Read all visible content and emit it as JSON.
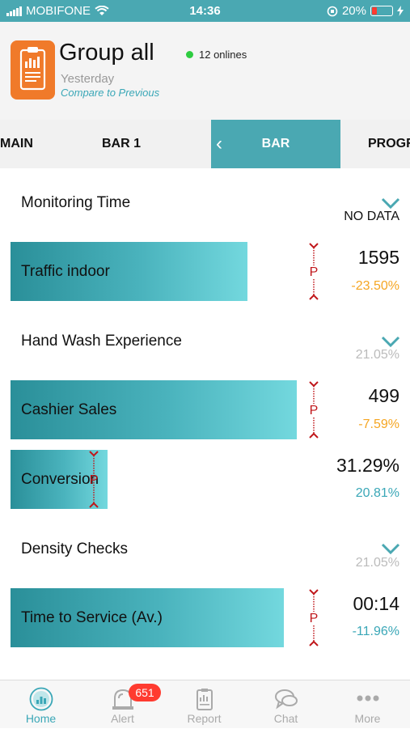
{
  "status_bar": {
    "carrier": "MOBIFONE",
    "time": "14:36",
    "battery": "20%"
  },
  "header": {
    "title": "Group all",
    "online_count": "12 onlines",
    "period": "Yesterday",
    "compare_link": "Compare to Previous"
  },
  "tabs": [
    {
      "label": "MAIN"
    },
    {
      "label": "BAR 1"
    },
    {
      "label": "BAR",
      "active": true
    },
    {
      "label": "PROGR"
    }
  ],
  "sections": [
    {
      "title": "Monitoring Time",
      "summary": "NO DATA",
      "metrics": [
        {
          "label": "Traffic indoor",
          "value": "1595",
          "change": "-23.50%",
          "change_color": "#f5a623",
          "fill": 0.6
        }
      ]
    },
    {
      "title": "Hand Wash Experience",
      "summary": "21.05%",
      "metrics": [
        {
          "label": "Cashier Sales",
          "value": "499",
          "change": "-7.59%",
          "change_color": "#f5a623",
          "fill": 0.72
        },
        {
          "label": "Conversion",
          "value": "31.29%",
          "change": "20.81%",
          "change_color": "#3aa7b7",
          "fill": 0.25
        }
      ]
    },
    {
      "title": "Density Checks",
      "summary": "21.05%",
      "metrics": [
        {
          "label": "Time to Service (Av.)",
          "value": "00:14",
          "change": "-11.96%",
          "change_color": "#3aa7b7",
          "fill": 0.69
        }
      ]
    }
  ],
  "marker_label": "P",
  "bottom_nav": [
    {
      "label": "Home",
      "icon": "home-icon",
      "active": true
    },
    {
      "label": "Alert",
      "icon": "alert-icon",
      "badge": "651"
    },
    {
      "label": "Report",
      "icon": "report-icon"
    },
    {
      "label": "Chat",
      "icon": "chat-icon"
    },
    {
      "label": "More",
      "icon": "more-icon"
    }
  ],
  "colors": {
    "accent": "#4aa8b2",
    "brand_orange": "#f07a2a",
    "marker_red": "#c0171b",
    "negative_change": "#f5a623",
    "positive_change": "#3aa7b7"
  }
}
